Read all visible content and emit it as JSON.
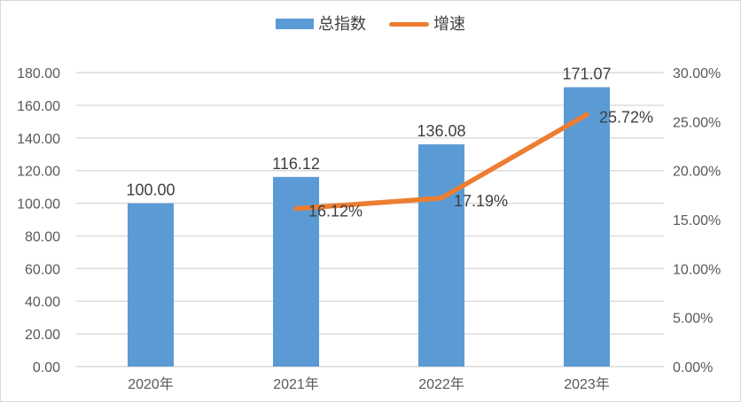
{
  "chart_data": {
    "type": "bar",
    "subtype": "combo-bar-line",
    "categories": [
      "2020年",
      "2021年",
      "2022年",
      "2023年"
    ],
    "series": [
      {
        "name": "总指数",
        "type": "bar",
        "axis": "left",
        "color": "#5B9BD5",
        "values": [
          100.0,
          116.12,
          136.08,
          171.07
        ],
        "data_labels": [
          "100.00",
          "116.12",
          "136.08",
          "171.07"
        ]
      },
      {
        "name": "增速",
        "type": "line",
        "axis": "right",
        "color": "#ED7D31",
        "values": [
          null,
          16.12,
          17.19,
          25.72
        ],
        "data_labels": [
          null,
          "16.12%",
          "17.19%",
          "25.72%"
        ]
      }
    ],
    "title": "",
    "xlabel": "",
    "ylabel": "",
    "left_axis": {
      "min": 0,
      "max": 180,
      "step": 20,
      "ticks": [
        "180.00",
        "160.00",
        "140.00",
        "120.00",
        "100.00",
        "80.00",
        "60.00",
        "40.00",
        "20.00",
        "0.00"
      ]
    },
    "right_axis": {
      "min": 0,
      "max": 30,
      "step": 5,
      "ticks": [
        "30.00%",
        "25.00%",
        "20.00%",
        "15.00%",
        "10.00%",
        "5.00%",
        "0.00%"
      ]
    },
    "legend_position": "top",
    "grid": true,
    "colors": {
      "bar": "#5B9BD5",
      "line": "#ED7D31",
      "grid": "#D9D9D9",
      "axis_text": "#595959",
      "data_label": "#404040",
      "border": "#D9D9D9",
      "background": "#FFFFFF"
    }
  }
}
